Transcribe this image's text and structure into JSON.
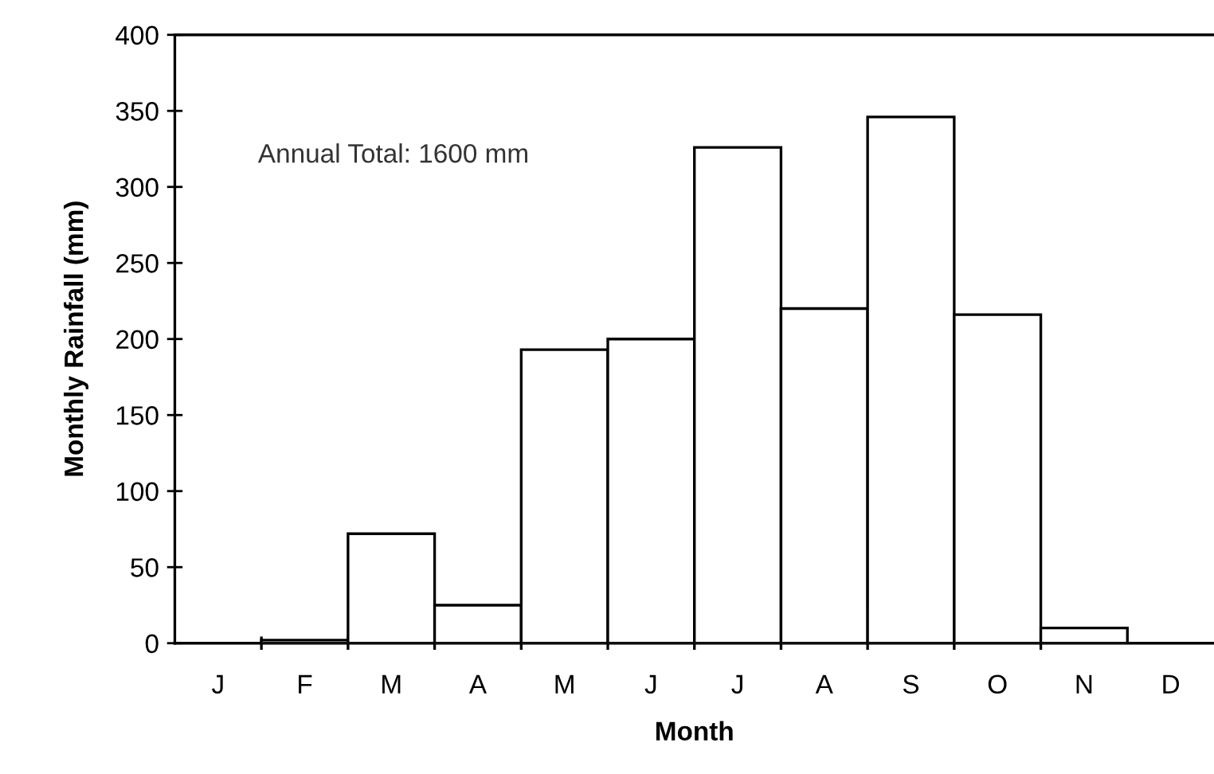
{
  "chart_data": {
    "type": "bar",
    "xlabel": "Month",
    "ylabel": "Monthly Rainfall (mm)",
    "categories": [
      "J",
      "F",
      "M",
      "A",
      "M",
      "J",
      "J",
      "A",
      "S",
      "O",
      "N",
      "D"
    ],
    "values": [
      0,
      2,
      72,
      25,
      193,
      200,
      326,
      220,
      346,
      216,
      10,
      0
    ],
    "color": "#ffffff",
    "ylim": [
      0,
      400
    ],
    "yticks": [
      0,
      50,
      100,
      150,
      200,
      250,
      300,
      350,
      400
    ],
    "annotations": [
      "Annual Total: 1600 mm"
    ],
    "grid": false,
    "legend": false
  }
}
